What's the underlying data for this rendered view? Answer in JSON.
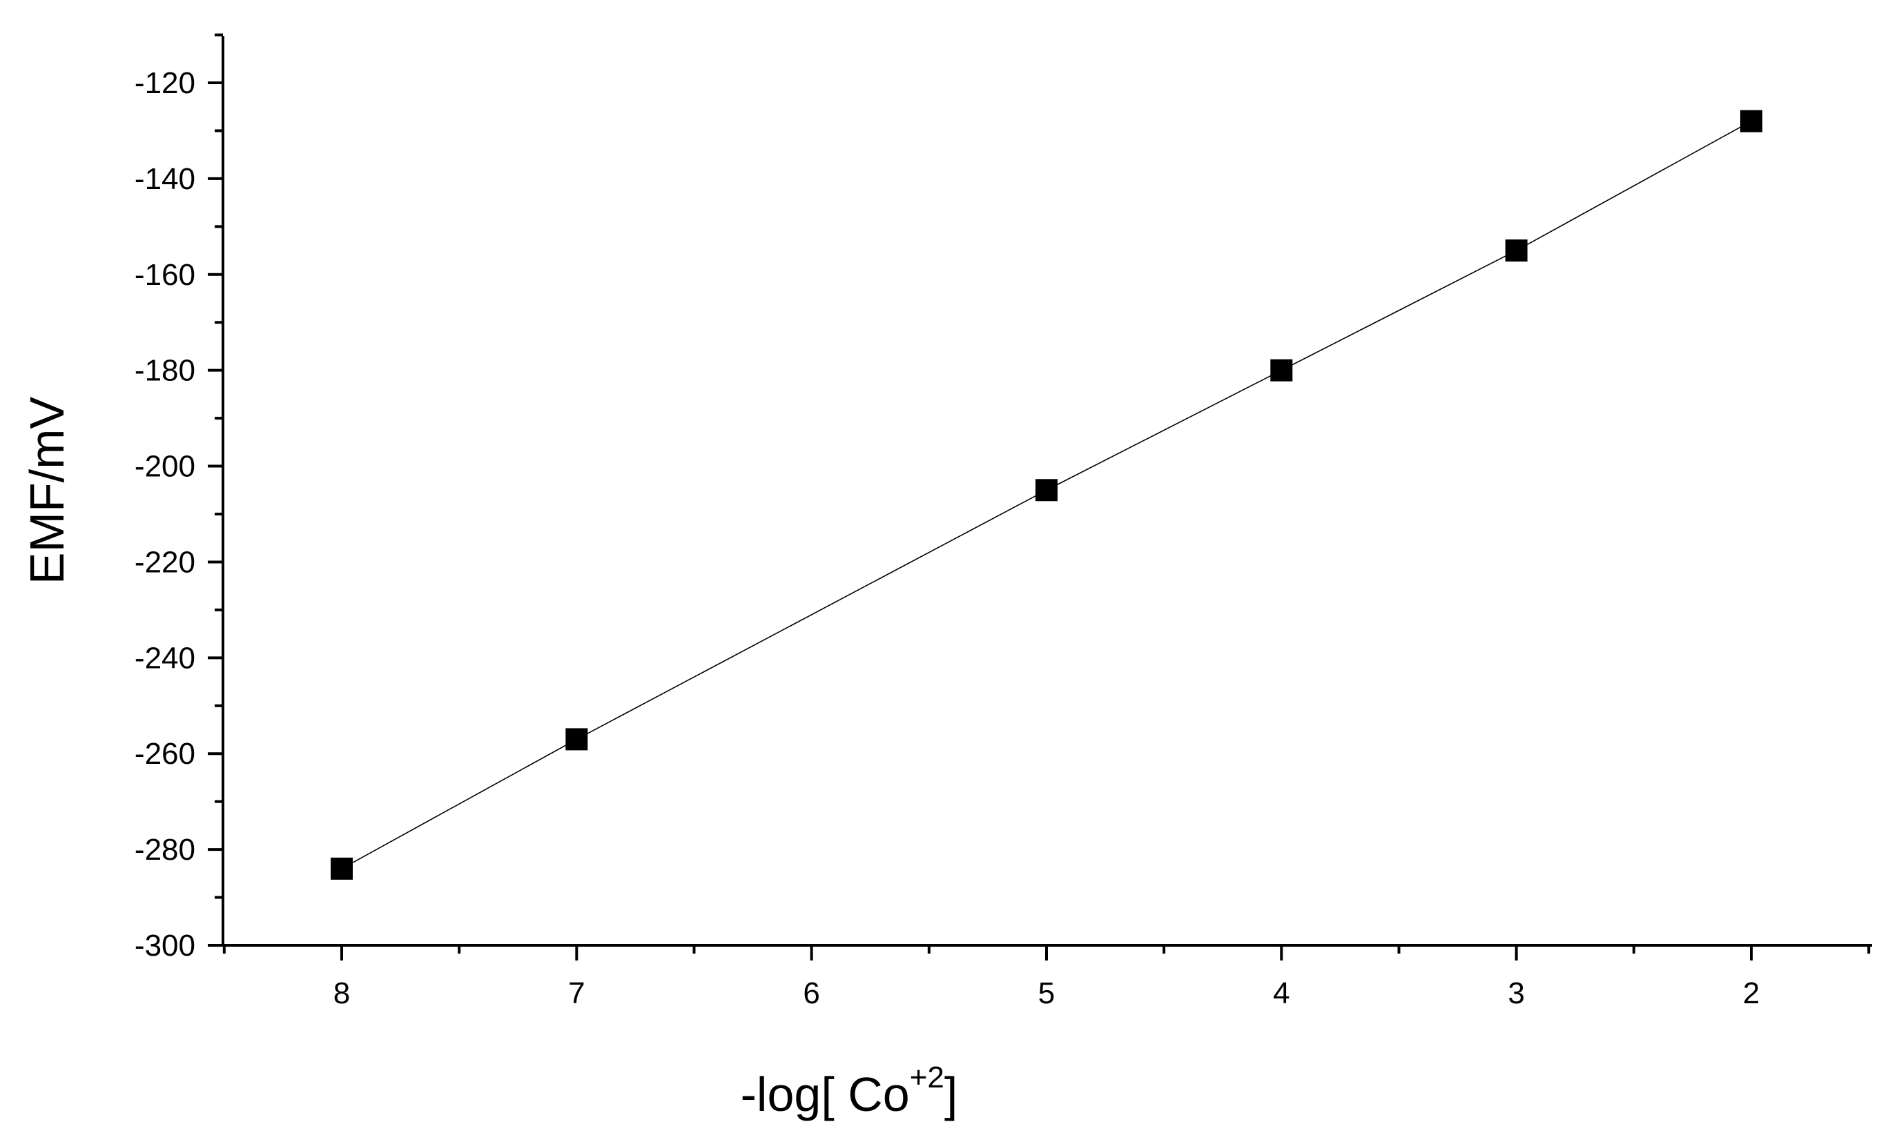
{
  "chart_data": {
    "type": "line",
    "title": "",
    "xlabel": {
      "prefix": "-log[ Co",
      "superscript": "+2",
      "suffix": "]"
    },
    "ylabel": "EMF/mV",
    "x_reversed": true,
    "xlim": [
      8.5,
      1.5
    ],
    "ylim": [
      -300,
      -110
    ],
    "xticks": [
      8,
      7,
      6,
      5,
      4,
      3,
      2
    ],
    "xtick_labels": [
      "8",
      "7",
      "6",
      "5",
      "4",
      "3",
      "2"
    ],
    "x_minor_ticks": [
      8.5,
      7.5,
      6.5,
      5.5,
      4.5,
      3.5,
      2.5,
      1.5
    ],
    "yticks": [
      -120,
      -140,
      -160,
      -180,
      -200,
      -220,
      -240,
      -260,
      -280,
      -300
    ],
    "ytick_labels": [
      "-120",
      "-140",
      "-160",
      "-180",
      "-200",
      "-220",
      "-240",
      "-260",
      "-280",
      "-300"
    ],
    "y_minor_ticks": [
      -110,
      -130,
      -150,
      -170,
      -190,
      -210,
      -230,
      -250,
      -270,
      -290
    ],
    "grid": false,
    "series": [
      {
        "name": "EMF",
        "marker": "square",
        "color": "#000000",
        "x": [
          8,
          7,
          5,
          4,
          3,
          2
        ],
        "y": [
          -284,
          -257,
          -205,
          -180,
          -155,
          -128
        ]
      }
    ]
  }
}
